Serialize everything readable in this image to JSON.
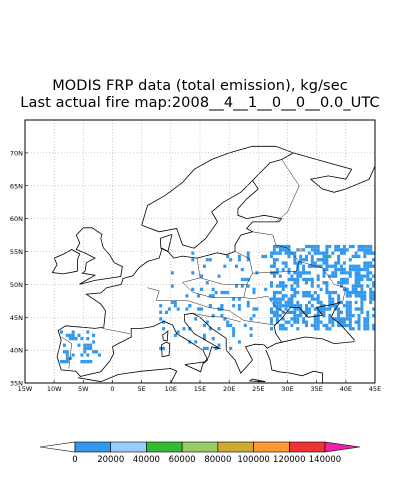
{
  "title_line1": "MODIS FRP data (total emission), kg/sec",
  "title_line2": "Last actual fire map:2008__4__1__0__0__0.0_UTC",
  "map": {
    "lon_range": [
      -15,
      45
    ],
    "lat_range": [
      35,
      75
    ],
    "grid": "dotted",
    "lon_ticks": [
      "15W",
      "10W",
      "5W",
      "0",
      "5E",
      "10E",
      "15E",
      "20E",
      "25E",
      "30E",
      "35E",
      "40E",
      "45E"
    ],
    "lat_ticks": [
      "35N",
      "40N",
      "45N",
      "50N",
      "55N",
      "60N",
      "65N",
      "70N"
    ]
  },
  "fire_cells": {
    "color": "#3399ee",
    "regions": [
      {
        "name": "eastern-europe-russia",
        "lon": [
          27,
          45
        ],
        "lat": [
          43,
          56
        ]
      },
      {
        "name": "spain",
        "lon": [
          -9,
          -2
        ],
        "lat": [
          38,
          43
        ]
      },
      {
        "name": "italy-balkans",
        "lon": [
          8,
          25
        ],
        "lat": [
          40,
          47
        ]
      },
      {
        "name": "central-europe",
        "lon": [
          10,
          27
        ],
        "lat": [
          46,
          55
        ]
      }
    ]
  },
  "colorbar": {
    "labels": [
      "0",
      "20000",
      "40000",
      "60000",
      "80000",
      "100000",
      "120000",
      "140000"
    ],
    "colors": [
      "#ffffff",
      "#3399ee",
      "#99ccff",
      "#33bb33",
      "#99cc66",
      "#ccaa33",
      "#ff9933",
      "#ee3333",
      "#ee22aa"
    ]
  }
}
